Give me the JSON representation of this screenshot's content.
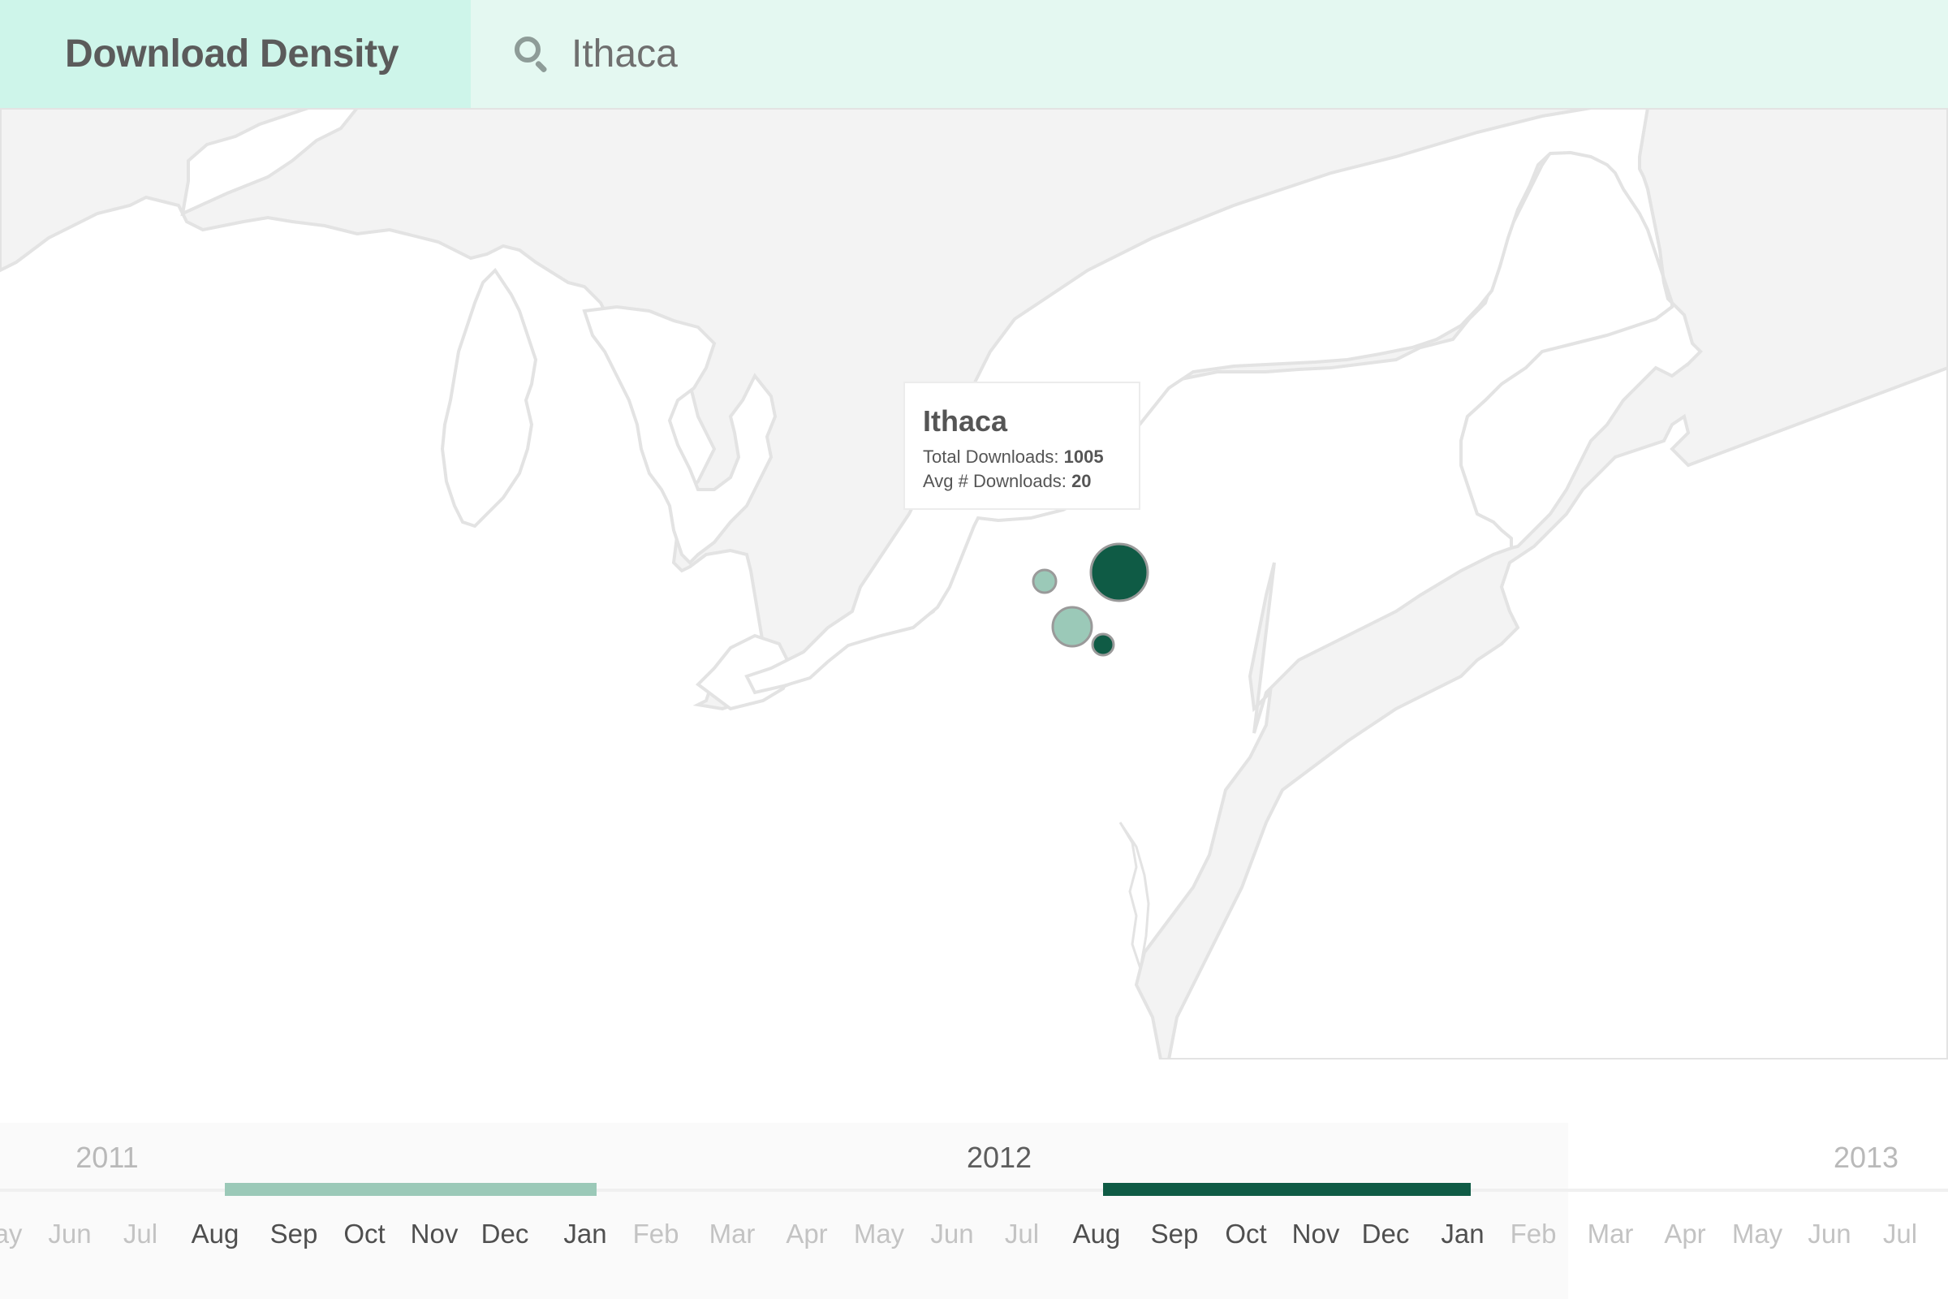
{
  "header": {
    "brand": "Download Density",
    "search": {
      "value": "Ithaca",
      "icon": "search-icon"
    }
  },
  "tooltip": {
    "city": "Ithaca",
    "total_label": "Total Downloads:",
    "total_value": "1005",
    "avg_label": "Avg # Downloads:",
    "avg_value": "20"
  },
  "map": {
    "land_color": "#f3f3f3",
    "water_color": "#ffffff",
    "border_color": "#e2e2e2",
    "markers": [
      {
        "name": "marker-large",
        "color": "#0f5b45"
      },
      {
        "name": "marker-light-small",
        "color": "#9bc9b8"
      },
      {
        "name": "marker-light-medium",
        "color": "#9bc9b8"
      },
      {
        "name": "marker-dark-small",
        "color": "#0f5b45"
      }
    ]
  },
  "timeline": {
    "years": [
      "2011",
      "2012",
      "2013"
    ],
    "active_year": "2012",
    "months": [
      "ay",
      "Jun",
      "Jul",
      "Aug",
      "Sep",
      "Oct",
      "Nov",
      "Dec",
      "Jan",
      "Feb",
      "Mar",
      "Apr",
      "May",
      "Jun",
      "Jul",
      "Aug",
      "Sep",
      "Oct",
      "Nov",
      "Dec",
      "Jan",
      "Feb",
      "Mar",
      "Apr",
      "May",
      "Jun",
      "Jul"
    ],
    "ranges": [
      {
        "name": "range-light",
        "color": "#9bc9b8",
        "from": "Aug",
        "to": "Jan"
      },
      {
        "name": "range-dark",
        "color": "#0f5b45",
        "from": "Aug",
        "to": "Jan"
      }
    ]
  }
}
